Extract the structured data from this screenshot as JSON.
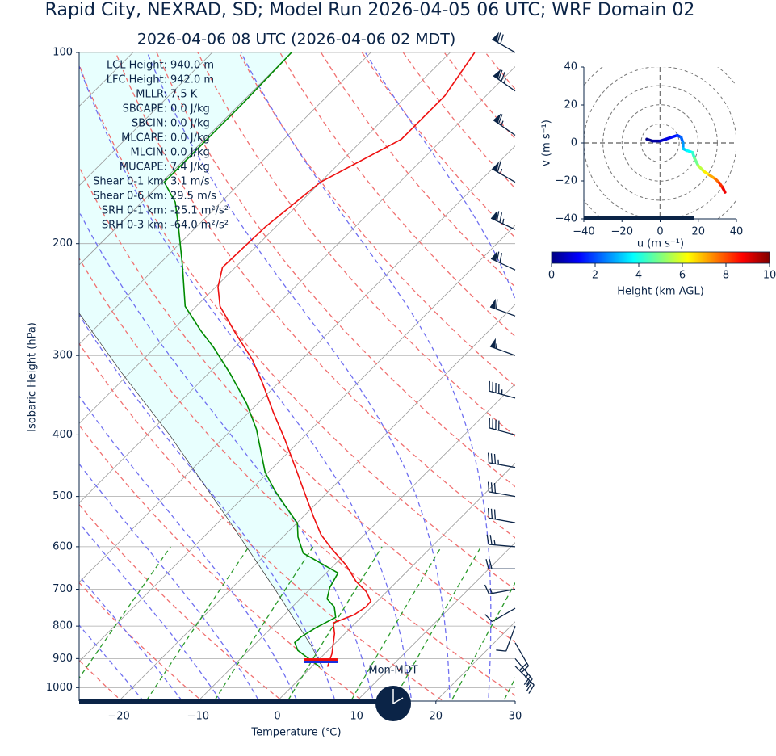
{
  "chart_data": [
    {
      "type": "skewt",
      "title": "Rapid City, NEXRAD, SD; Model Run 2026-04-05 06 UTC; WRF Domain 02",
      "subtitle": "2026-04-06 08 UTC  (2026-04-06 02 MDT)",
      "xlabel": "Temperature (℃)",
      "ylabel": "Isobaric Height (hPa)",
      "xlim": [
        -25,
        30
      ],
      "xticks": [
        {
          "value": -20,
          "label": "−20"
        },
        {
          "value": -10,
          "label": "−10"
        },
        0,
        10,
        20,
        30
      ],
      "ylim": [
        1050,
        100
      ],
      "yticks": [
        100,
        200,
        300,
        400,
        500,
        600,
        700,
        800,
        900,
        1000
      ],
      "log_y": true,
      "grid": true,
      "series": [
        {
          "color": "#ee1111",
          "width": 1.6,
          "x": [
            2.0,
            0.9,
            -1.3,
            -2.8,
            -1.2,
            -0.7,
            -0.8,
            -2.6,
            -5.2,
            -8.5,
            -12.3,
            -15.5,
            -18.7,
            -22.2,
            -27.1,
            -32.0,
            -37.0,
            -41.9,
            -46.3,
            -51.6,
            -57.0,
            -59.7,
            -61.6,
            -61.3,
            -60.0,
            -55.2,
            -55.2,
            -56.9
          ],
          "y": [
            927,
            884,
            822,
            791,
            768,
            746,
            731,
            706,
            680,
            641,
            605,
            574,
            538,
            500,
            451,
            407,
            368,
            332,
            304,
            277,
            251,
            234,
            218,
            188,
            160,
            137,
            117,
            100
          ]
        },
        {
          "color": "#008a00",
          "width": 1.6,
          "x": [
            1.0,
            -3.8,
            -5.2,
            -5.1,
            -4.4,
            -3.2,
            -4.7,
            -6.6,
            -7.7,
            -8.5,
            -15.4,
            -18.1,
            -19.9,
            -23.9,
            -26.8,
            -30.4,
            -36.9,
            -41.4,
            -47.3,
            -52.7,
            -56.4,
            -61.4,
            -66.8,
            -72.3,
            -75.8,
            -79.7,
            -79.7,
            -79.7,
            -80.0
          ],
          "y": [
            927,
            874,
            849,
            832,
            805,
            775,
            746,
            725,
            696,
            660,
            614,
            579,
            551,
            515,
            490,
            458,
            392,
            357,
            320,
            291,
            274,
            251,
            217,
            188,
            172,
            160,
            144,
            121,
            100
          ]
        },
        {
          "color": "#333333",
          "width": 0.7,
          "x": [
            1.3,
            -2.7,
            -14.4,
            -29.7,
            -47.0,
            -61.3,
            -74.0
          ],
          "y": [
            927,
            859,
            700,
            538,
            401,
            318,
            257
          ]
        }
      ],
      "wind_barbs": {
        "color": "#0b2447",
        "pressure": [
          100,
          115,
          135,
          160,
          190,
          220,
          260,
          300,
          350,
          400,
          450,
          500,
          550,
          600,
          650,
          700,
          750,
          800,
          850,
          900,
          925
        ],
        "speed_kt": [
          70,
          75,
          65,
          65,
          75,
          70,
          60,
          55,
          45,
          40,
          35,
          30,
          30,
          25,
          20,
          15,
          10,
          10,
          20,
          25,
          25
        ],
        "direction_deg": [
          300,
          305,
          305,
          300,
          295,
          295,
          290,
          290,
          285,
          285,
          280,
          280,
          280,
          275,
          270,
          260,
          240,
          200,
          150,
          140,
          135
        ]
      },
      "annotations": [
        {
          "label": "LCL Height:",
          "value": "940.0 m"
        },
        {
          "label": "LFC Height:",
          "value": "942.0 m"
        },
        {
          "label": "MLLR:",
          "value": "7.5 K"
        },
        {
          "label": "SBCAPE:",
          "value": "0.0 J/kg"
        },
        {
          "label": "SBCIN:",
          "value": "0.0 J/kg"
        },
        {
          "label": "MLCAPE:",
          "value": "0.0 J/kg"
        },
        {
          "label": "MLCIN:",
          "value": "0.0 J/kg"
        },
        {
          "label": "MUCAPE:",
          "value": "7.4 J/kg"
        },
        {
          "label": "Shear 0-1 km:",
          "value": "3.1 m/s"
        },
        {
          "label": "Shear 0-6 km:",
          "value": "29.5 m/s"
        },
        {
          "label": "SRH 0-1 km:",
          "value": "-25.1 m²/s²"
        },
        {
          "label": "SRH 0-3 km:",
          "value": "-64.0 m²/s²"
        }
      ],
      "clock_label": "Mon-MDT"
    },
    {
      "type": "hodograph",
      "xlabel": "u (m s⁻¹)",
      "ylabel": "v (m s⁻¹)",
      "xlim": [
        -40,
        40
      ],
      "xticks": [
        {
          "value": -40,
          "label": "−40"
        },
        {
          "value": -20,
          "label": "−20"
        },
        0,
        20,
        40
      ],
      "ylim": [
        -40,
        40
      ],
      "yticks": [
        {
          "value": -40,
          "label": "−40"
        },
        {
          "value": -20,
          "label": "−20"
        },
        0,
        20,
        40
      ],
      "u": [
        -7,
        -4,
        0,
        3,
        6,
        9,
        11,
        12,
        12,
        14,
        17,
        18,
        20,
        23,
        26,
        29,
        31,
        33,
        34
      ],
      "v": [
        2,
        1,
        1,
        2,
        3,
        4,
        3,
        0,
        -3,
        -4,
        -5,
        -8,
        -12,
        -15,
        -17,
        -19,
        -21,
        -24,
        -26
      ],
      "heights": [
        0,
        0.2,
        0.5,
        0.8,
        1.2,
        1.6,
        2.0,
        2.5,
        3.0,
        3.5,
        4.0,
        4.5,
        5.2,
        6.0,
        6.8,
        7.4,
        8.0,
        8.6,
        9.2
      ],
      "colormap": "jet",
      "colorbar": {
        "label": "Height (km AGL)",
        "lim": [
          0,
          10
        ],
        "ticks": [
          0,
          2,
          4,
          6,
          8,
          10
        ]
      }
    }
  ]
}
